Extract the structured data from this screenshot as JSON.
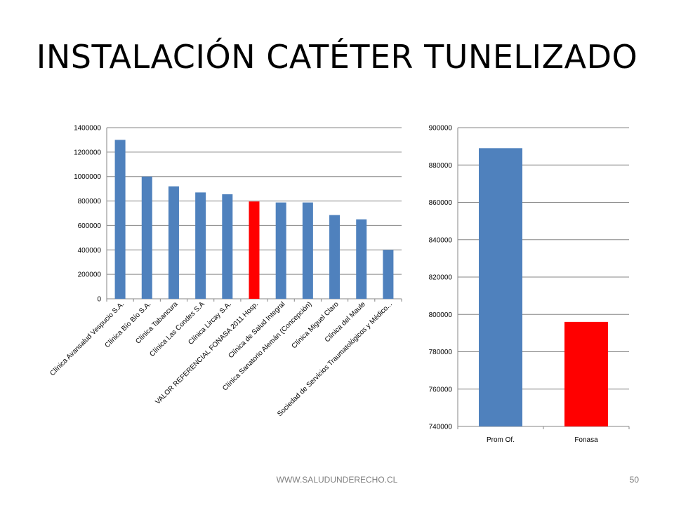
{
  "slide": {
    "title": "INSTALACIÓN CATÉTER TUNELIZADO",
    "footer_url": "WWW.SALUDUNDERECHO.CL",
    "page_number": "50"
  },
  "colors": {
    "default_bar": "#4f81bd",
    "highlight_bar": "#ff0000",
    "grid": "#868686"
  },
  "chart_data": [
    {
      "type": "bar",
      "title": "",
      "xlabel": "",
      "ylabel": "",
      "ylim": [
        0,
        1400000
      ],
      "yticks": [
        0,
        200000,
        400000,
        600000,
        800000,
        1000000,
        1200000,
        1400000
      ],
      "grid": true,
      "categories": [
        "Clínica Avansalud Vespucio S.A.",
        "Clínica Bío Bío S.A.",
        "Clínica Tabancura",
        "Clínica Las Condes S.A",
        "Clínica Lircay S.A.",
        "VALOR REFERENCIAL FONASA 2011 Hosp.",
        "Clínica de Salud Integral",
        "Clínica Sanatorio Alemán (Concepción)",
        "Clínica Miguel Claro",
        "Clínica del Maule",
        "Sociedad de Servicios Traumatológicos y Médico..."
      ],
      "values": [
        1300000,
        1000000,
        920000,
        870000,
        855000,
        796000,
        788000,
        788000,
        685000,
        650000,
        400000
      ],
      "highlight_index": 5
    },
    {
      "type": "bar",
      "title": "",
      "xlabel": "",
      "ylabel": "",
      "ylim": [
        740000,
        900000
      ],
      "yticks": [
        740000,
        760000,
        780000,
        800000,
        820000,
        840000,
        860000,
        880000,
        900000
      ],
      "grid": true,
      "categories": [
        "Prom Of.",
        "Fonasa"
      ],
      "values": [
        889000,
        796000
      ],
      "highlight_index": 1
    }
  ]
}
